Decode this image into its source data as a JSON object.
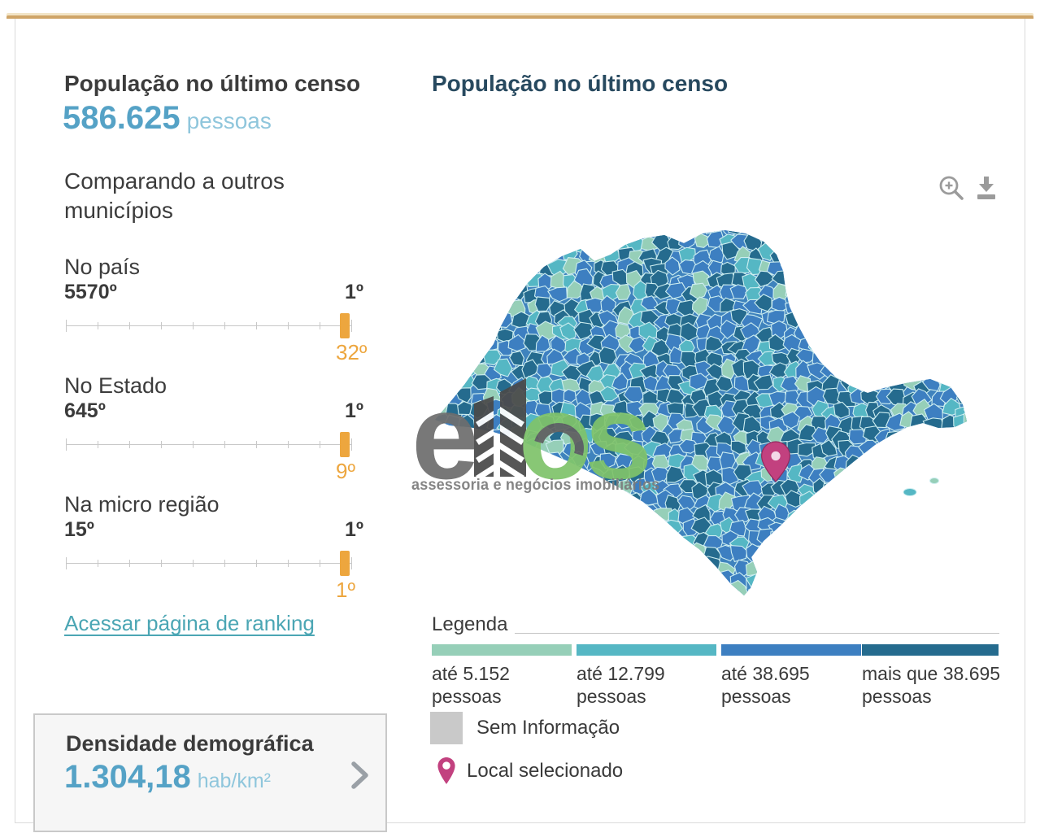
{
  "header": {
    "accent_color": "#cfa467"
  },
  "stats_panel": {
    "population": {
      "title": "População no último censo",
      "value": "586.625",
      "unit": "pessoas"
    },
    "comparing_heading": "Comparando a outros municípios",
    "rankings": [
      {
        "label": "No país",
        "worst_rank": "5570º",
        "best_rank": "1º",
        "current_rank": "32º"
      },
      {
        "label": "No Estado",
        "worst_rank": "645º",
        "best_rank": "1º",
        "current_rank": "9º"
      },
      {
        "label": "Na micro região",
        "worst_rank": "15º",
        "best_rank": "1º",
        "current_rank": "1º"
      }
    ],
    "ranking_link": "Acessar página de ranking",
    "density": {
      "title": "Densidade demográfica",
      "value": "1.304,18",
      "unit": "hab/km²"
    },
    "accent_orange": "#eda63e",
    "value_blue": "#55a2c6"
  },
  "map_panel": {
    "title": "População no último censo",
    "icons": [
      {
        "name": "zoom-in-icon"
      },
      {
        "name": "download-icon"
      }
    ],
    "watermark": {
      "brand_left": "e",
      "brand_right": "os",
      "tagline": "assessoria e negócios imobiliários"
    },
    "palette": [
      "#96cfb8",
      "#55b7c4",
      "#3d7fc1",
      "#256b8e"
    ],
    "cell_stroke": "#cdeef0",
    "legend": {
      "heading": "Legenda",
      "classes": [
        {
          "label": "até 5.152 pessoas",
          "color": "#96cfb8"
        },
        {
          "label": "até 12.799 pessoas",
          "color": "#55b7c4"
        },
        {
          "label": "até 38.695 pessoas",
          "color": "#3d7fc1"
        },
        {
          "label": "mais que 38.695 pessoas",
          "color": "#256b8e"
        }
      ],
      "no_info": {
        "label": "Sem Informação",
        "color": "#c9c9c9"
      },
      "selected_location": {
        "label": "Local selecionado",
        "pin_color": "#c2417f"
      }
    }
  }
}
